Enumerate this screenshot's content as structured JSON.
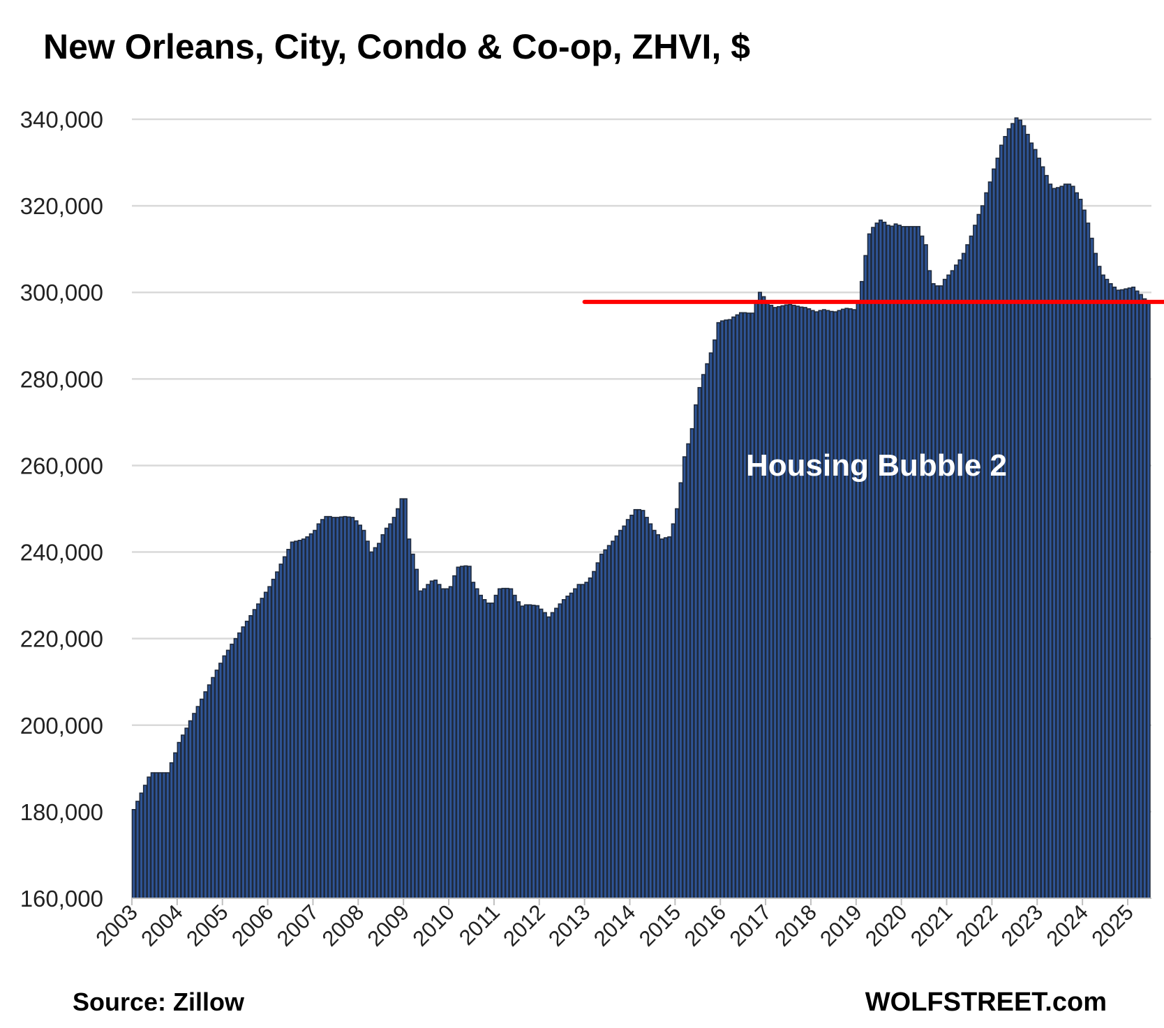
{
  "chart_data": {
    "type": "bar",
    "title": "New Orleans, City, Condo & Co-op, ZHVI, $",
    "xlabel": "",
    "ylabel": "",
    "x_start": "2003-01",
    "frequency": "monthly",
    "ylim": [
      160000,
      340000
    ],
    "yticks": [
      160000,
      180000,
      200000,
      220000,
      240000,
      260000,
      280000,
      300000,
      320000,
      340000
    ],
    "ytick_labels": [
      "160,000",
      "180,000",
      "200,000",
      "220,000",
      "240,000",
      "260,000",
      "280,000",
      "300,000",
      "320,000",
      "340,000"
    ],
    "xtick_labels": [
      "2003",
      "2004",
      "2005",
      "2006",
      "2007",
      "2008",
      "2009",
      "2010",
      "2011",
      "2012",
      "2013",
      "2014",
      "2015",
      "2016",
      "2017",
      "2018",
      "2019",
      "2020",
      "2021",
      "2022",
      "2023",
      "2024",
      "2025"
    ],
    "grid": true,
    "series": [
      {
        "name": "ZHVI",
        "color": "#2f5597",
        "values": [
          180500,
          182400,
          184300,
          186100,
          188000,
          189000,
          189000,
          189000,
          189000,
          189000,
          191300,
          193600,
          196000,
          197700,
          199300,
          201000,
          202700,
          204300,
          206000,
          207700,
          209300,
          211000,
          212700,
          214300,
          216000,
          217300,
          218700,
          220000,
          221300,
          222700,
          224000,
          225300,
          226700,
          228000,
          229300,
          230700,
          232000,
          233700,
          235400,
          237200,
          238900,
          240600,
          242300,
          242500,
          242700,
          243000,
          243500,
          244200,
          245000,
          246500,
          247500,
          248200,
          248200,
          248000,
          248000,
          248100,
          248200,
          248100,
          248000,
          247200,
          246200,
          245000,
          242500,
          240000,
          241000,
          242000,
          244000,
          245500,
          246500,
          248000,
          250000,
          252300,
          252300,
          243000,
          239500,
          236000,
          231000,
          231500,
          232500,
          233300,
          233500,
          232500,
          231500,
          231500,
          232000,
          234500,
          236500,
          236700,
          236800,
          236700,
          233000,
          231500,
          230000,
          229000,
          228200,
          228200,
          230000,
          231500,
          231600,
          231600,
          231500,
          230000,
          228500,
          227500,
          227800,
          227800,
          227700,
          227600,
          226800,
          226000,
          225000,
          226000,
          227000,
          228000,
          229000,
          229800,
          230500,
          231500,
          232500,
          232500,
          233000,
          234000,
          235500,
          237500,
          239500,
          240500,
          241500,
          242500,
          243700,
          245000,
          246000,
          247500,
          248500,
          249800,
          249800,
          249600,
          248000,
          246500,
          245000,
          244000,
          243000,
          243300,
          243500,
          246500,
          250000,
          256000,
          262000,
          265000,
          268500,
          274000,
          278000,
          281000,
          283500,
          286000,
          289000,
          293000,
          293400,
          293600,
          293700,
          294300,
          294800,
          295300,
          295300,
          295200,
          295200,
          297500,
          300000,
          299000,
          298000,
          297000,
          296500,
          296700,
          296900,
          297100,
          297200,
          297000,
          296800,
          296600,
          296500,
          296200,
          295800,
          295500,
          295800,
          296000,
          295800,
          295600,
          295500,
          295800,
          296100,
          296300,
          296200,
          296000,
          298000,
          302500,
          308500,
          313500,
          315000,
          316000,
          316700,
          316200,
          315500,
          315300,
          315800,
          315500,
          315200,
          315200,
          315200,
          315200,
          315200,
          313000,
          311000,
          305000,
          302000,
          301500,
          301500,
          303000,
          304000,
          305000,
          306300,
          307500,
          309000,
          311000,
          313000,
          315500,
          318000,
          320000,
          323000,
          325500,
          328500,
          331000,
          334000,
          336000,
          337800,
          339000,
          340300,
          339800,
          338500,
          336500,
          334500,
          333000,
          331000,
          329000,
          327000,
          325000,
          324000,
          324200,
          324500,
          325000,
          325000,
          324500,
          323000,
          321500,
          319000,
          316000,
          312500,
          309000,
          306000,
          304000,
          303000,
          302000,
          301200,
          300500,
          300600,
          300800,
          301000,
          301200,
          300300,
          299500,
          298500,
          297500
        ]
      }
    ],
    "reference_line": {
      "value": 297800,
      "start": "2013-01",
      "color": "#ff0000"
    },
    "annotations": [
      {
        "text": "Housing Bubble 2",
        "color": "#ffffff"
      }
    ]
  },
  "footer": {
    "source": "Source: Zillow",
    "brand": "WOLFSTREET.com"
  }
}
